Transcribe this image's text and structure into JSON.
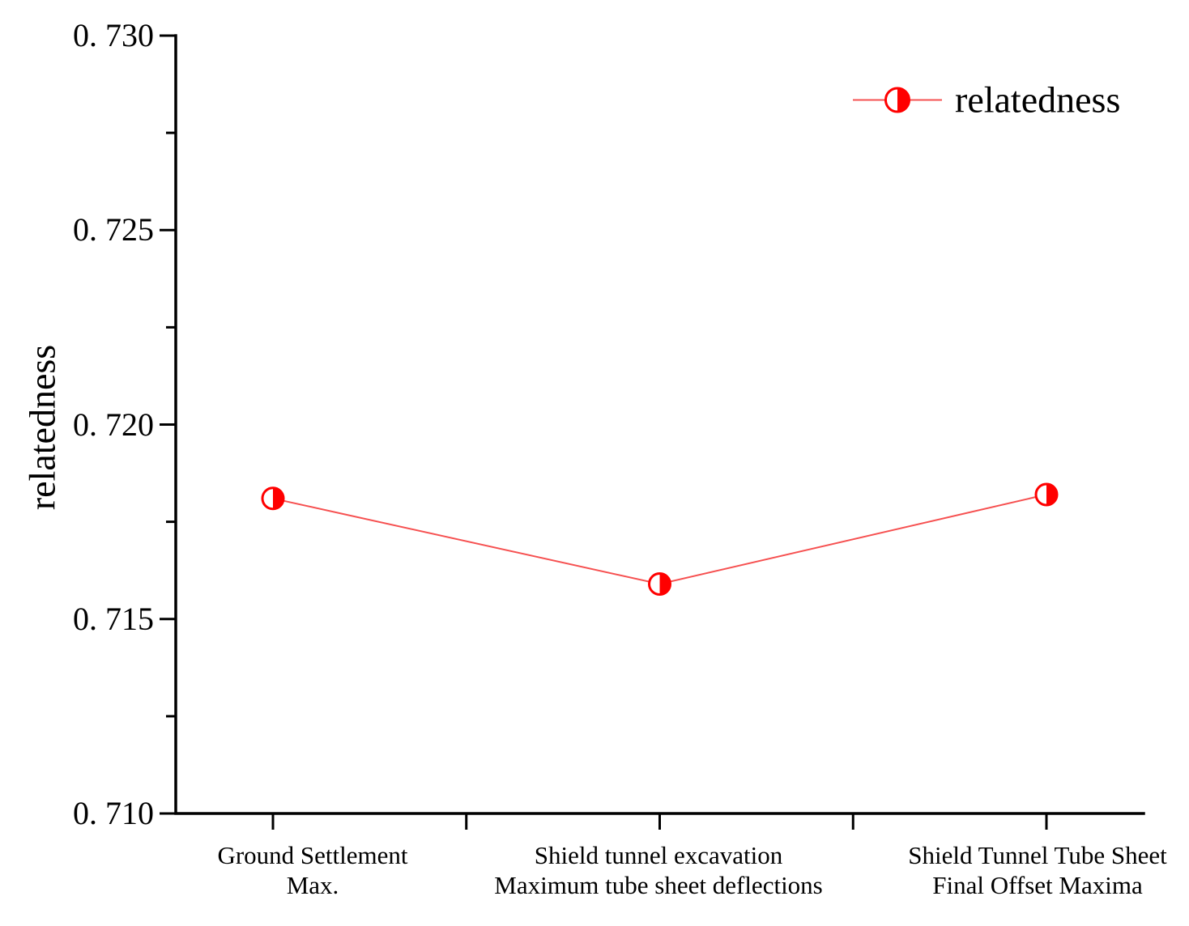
{
  "chart_data": {
    "type": "line",
    "title": "",
    "xlabel": "",
    "ylabel": "relatedness",
    "categories": [
      "Ground Settlement\nMax.",
      "Shield tunnel excavation\nMaximum tube sheet deflections",
      "Shield Tunnel Tube Sheet\nFinal Offset Maxima"
    ],
    "series": [
      {
        "name": "relatedness",
        "values": [
          0.7181,
          0.7159,
          0.7182
        ],
        "color": "#ff0000",
        "line_color": "#f65050",
        "marker": "half-filled-circle"
      }
    ],
    "ylim": [
      0.71,
      0.73
    ],
    "y_ticks": [
      0.71,
      0.715,
      0.72,
      0.725,
      0.73
    ],
    "y_tick_labels": [
      "0. 710",
      "0. 715",
      "0. 720",
      "0. 725",
      "0. 730"
    ],
    "x_axis_ticks_count": 5,
    "grid": false,
    "legend_position": "top-right",
    "legend_label": "relatedness"
  },
  "colors": {
    "axis": "#000000",
    "marker_red": "#ff0000",
    "line_red": "#f65050",
    "text": "#000000"
  }
}
